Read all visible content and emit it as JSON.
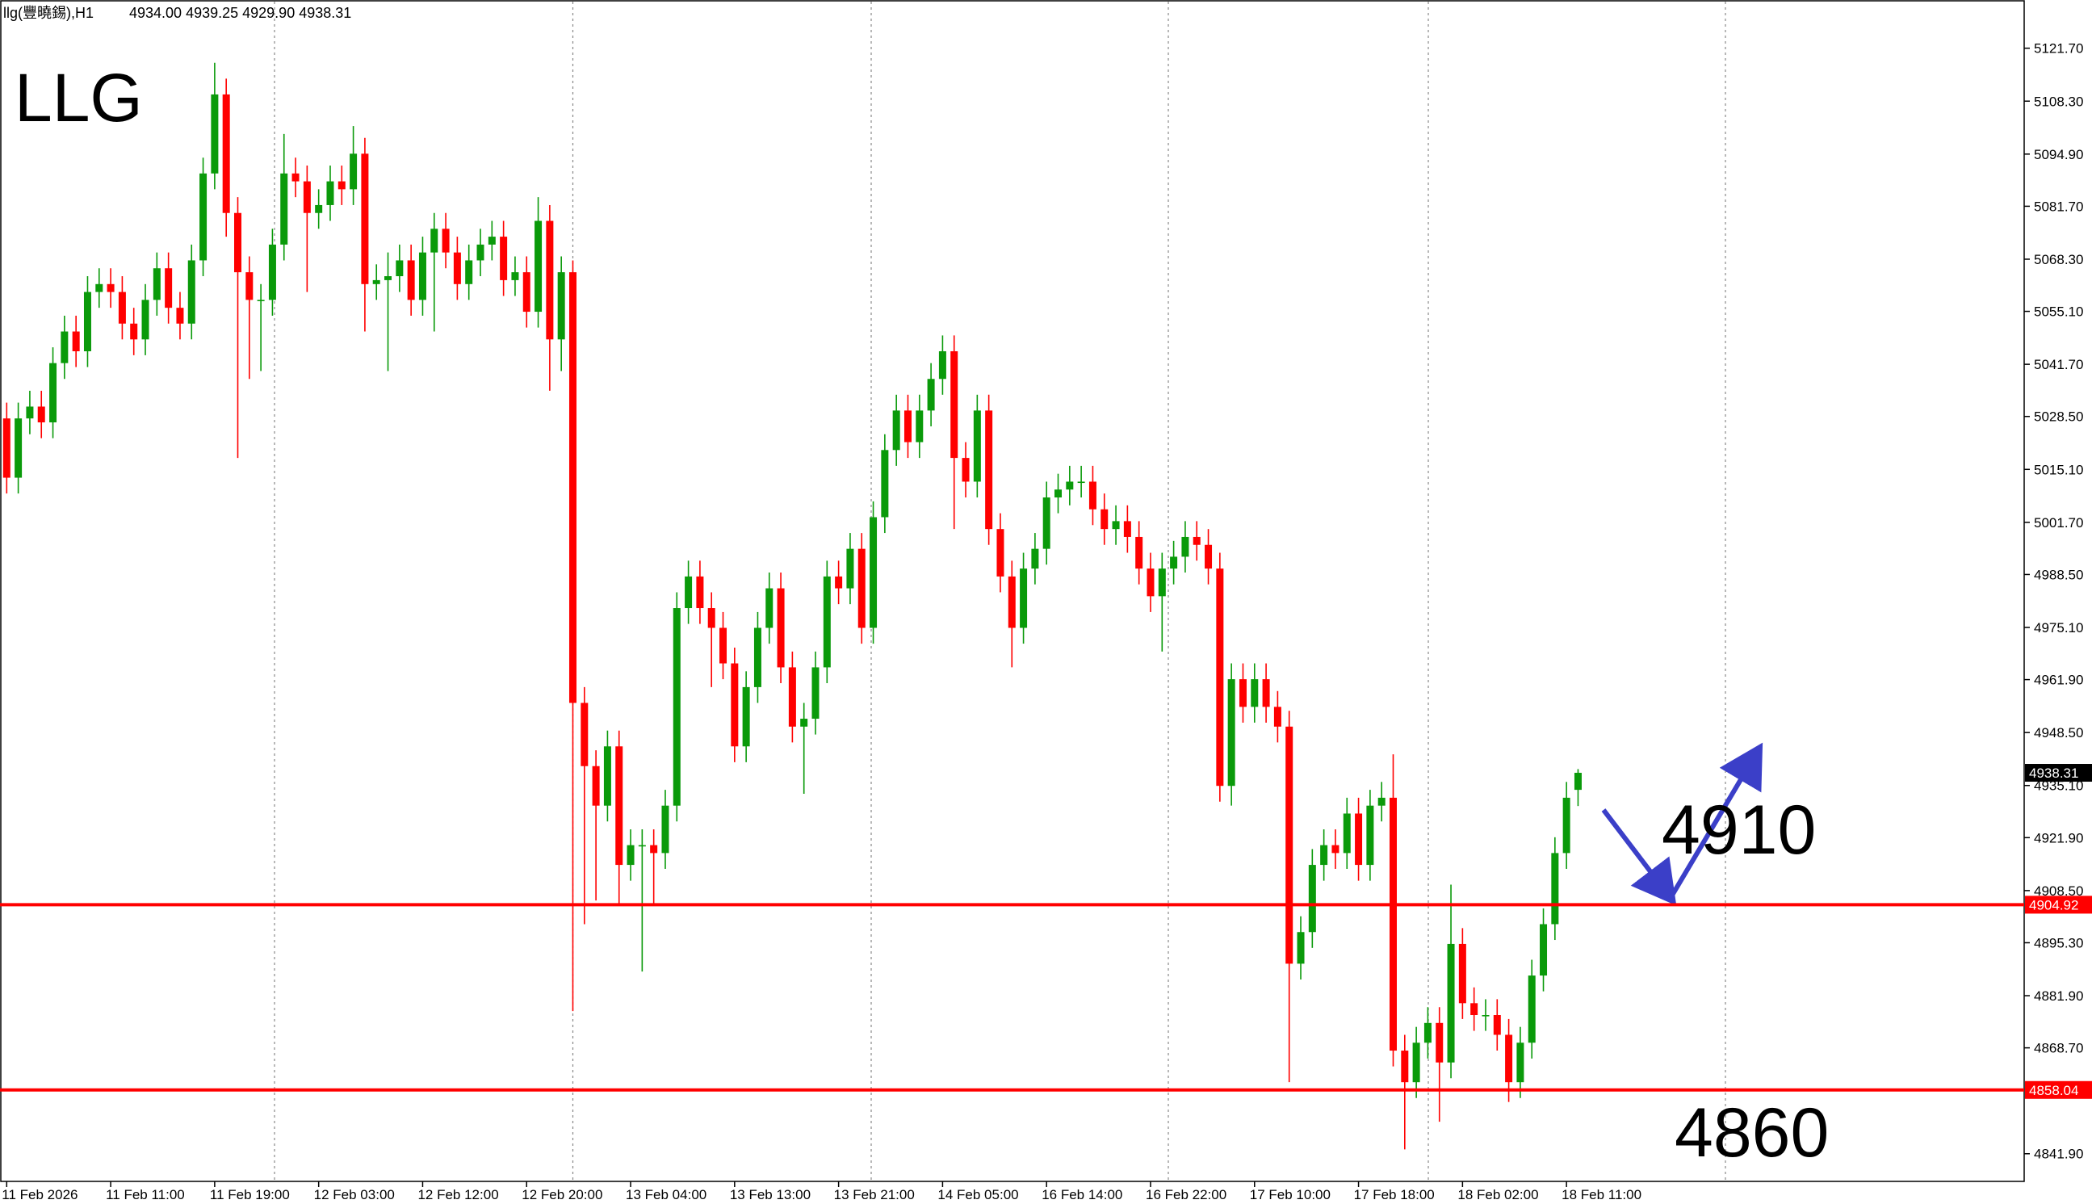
{
  "chart_data": {
    "type": "candlestick",
    "title": "llg(豐曉錫),H1",
    "ohlc_label": "4934.00 4939.25 4929.90 4938.31",
    "annotations": [
      "LLG",
      "4910",
      "4860"
    ],
    "up_color": "#0a9a0a",
    "down_color": "#ff0000",
    "level_color": "#ff0000",
    "categories": [
      "11 Feb 2026",
      null,
      null,
      null,
      null,
      null,
      null,
      null,
      null,
      "11 Feb 11:00",
      null,
      null,
      null,
      null,
      null,
      null,
      null,
      null,
      "11 Feb 19:00",
      null,
      null,
      null,
      null,
      null,
      null,
      null,
      null,
      "12 Feb 03:00",
      null,
      null,
      null,
      null,
      null,
      null,
      null,
      null,
      "12 Feb 12:00",
      null,
      null,
      null,
      null,
      null,
      null,
      null,
      null,
      "12 Feb 20:00",
      null,
      null,
      null,
      null,
      null,
      null,
      null,
      null,
      "13 Feb 04:00",
      null,
      null,
      null,
      null,
      null,
      null,
      null,
      null,
      "13 Feb 13:00",
      null,
      null,
      null,
      null,
      null,
      null,
      null,
      null,
      "13 Feb 21:00",
      null,
      null,
      null,
      null,
      null,
      null,
      null,
      null,
      "14 Feb 05:00",
      null,
      null,
      null,
      null,
      null,
      null,
      null,
      null,
      "16 Feb 14:00",
      null,
      null,
      null,
      null,
      null,
      null,
      null,
      null,
      "16 Feb 22:00",
      null,
      null,
      null,
      null,
      null,
      null,
      null,
      null,
      "17 Feb 10:00",
      null,
      null,
      null,
      null,
      null,
      null,
      null,
      null,
      "17 Feb 18:00",
      null,
      null,
      null,
      null,
      null,
      null,
      null,
      null,
      "18 Feb 02:00",
      null,
      null,
      null,
      null,
      null,
      null,
      null,
      null,
      "18 Feb 11:00",
      null
    ],
    "open": [
      5028,
      5013,
      5028,
      5031,
      5027,
      5042,
      5050,
      5045,
      5060,
      5062,
      5060,
      5052,
      5048,
      5058,
      5066,
      5056,
      5052,
      5068,
      5090,
      5110,
      5080,
      5065,
      5058,
      5058,
      5072,
      5090,
      5088,
      5080,
      5082,
      5088,
      5086,
      5095,
      5062,
      5063,
      5064,
      5068,
      5058,
      5070,
      5076,
      5070,
      5062,
      5068,
      5072,
      5074,
      5063,
      5065,
      5055,
      5078,
      5048,
      5065,
      4956,
      4940,
      4930,
      4945,
      4915,
      4920,
      4920,
      4918,
      4930,
      4980,
      4988,
      4980,
      4975,
      4966,
      4945,
      4960,
      4975,
      4985,
      4965,
      4950,
      4952,
      4965,
      4988,
      4985,
      4995,
      4975,
      5003,
      5020,
      5030,
      5022,
      5030,
      5038,
      5045,
      5018,
      5012,
      5030,
      5000,
      4988,
      4975,
      4990,
      4995,
      5008,
      5010,
      5012,
      5012,
      5005,
      5000,
      5002,
      4998,
      4990,
      4983,
      4990,
      4993,
      4998,
      4996,
      4990,
      4935,
      4962,
      4955,
      4962,
      4955,
      4950,
      4890,
      4898,
      4915,
      4920,
      4918,
      4928,
      4915,
      4930,
      4932,
      4868,
      4860,
      4870,
      4875,
      4865,
      4895,
      4880,
      4877,
      4877,
      4872,
      4860,
      4870,
      4887,
      4900,
      4918,
      4934
    ],
    "high": [
      5032,
      5032,
      5035,
      5035,
      5046,
      5054,
      5054,
      5064,
      5066,
      5066,
      5064,
      5056,
      5062,
      5070,
      5070,
      5060,
      5072,
      5094,
      5118,
      5114,
      5084,
      5069,
      5062,
      5076,
      5100,
      5094,
      5092,
      5086,
      5092,
      5092,
      5102,
      5099,
      5067,
      5070,
      5072,
      5072,
      5074,
      5080,
      5080,
      5074,
      5072,
      5076,
      5078,
      5078,
      5069,
      5069,
      5084,
      5082,
      5069,
      5068,
      4960,
      4944,
      4949,
      4949,
      4924,
      4924,
      4924,
      4934,
      4984,
      4992,
      4992,
      4984,
      4979,
      4970,
      4964,
      4979,
      4989,
      4989,
      4969,
      4956,
      4969,
      4992,
      4992,
      4999,
      4999,
      5007,
      5024,
      5034,
      5034,
      5034,
      5042,
      5049,
      5049,
      5022,
      5034,
      5034,
      5004,
      4992,
      4994,
      4999,
      5012,
      5014,
      5016,
      5016,
      5016,
      5009,
      5006,
      5006,
      5002,
      4994,
      4994,
      4997,
      5002,
      5002,
      5000,
      4994,
      4966,
      4966,
      4966,
      4966,
      4959,
      4954,
      4902,
      4919,
      4924,
      4924,
      4932,
      4932,
      4934,
      4936,
      4943,
      4872,
      4874,
      4879,
      4879,
      4910,
      4899,
      4884,
      4881,
      4881,
      4876,
      4874,
      4891,
      4904,
      4922,
      4936,
      4939.25
    ],
    "low": [
      5009,
      5009,
      5024,
      5023,
      5023,
      5038,
      5041,
      5041,
      5056,
      5056,
      5048,
      5044,
      5044,
      5054,
      5052,
      5048,
      5048,
      5064,
      5086,
      5074,
      5018,
      5038,
      5040,
      5054,
      5068,
      5084,
      5060,
      5076,
      5078,
      5082,
      5082,
      5050,
      5058,
      5040,
      5060,
      5054,
      5054,
      5050,
      5066,
      5058,
      5058,
      5064,
      5068,
      5059,
      5059,
      5051,
      5051,
      5035,
      5040,
      4878,
      4900,
      4906,
      4926,
      4905,
      4911,
      4888,
      4905,
      4914,
      4926,
      4976,
      4976,
      4960,
      4962,
      4941,
      4941,
      4956,
      4971,
      4961,
      4946,
      4933,
      4948,
      4961,
      4981,
      4981,
      4971,
      4971,
      4999,
      5016,
      5018,
      5018,
      5026,
      5034,
      5000,
      5008,
      5008,
      4996,
      4984,
      4965,
      4971,
      4986,
      4991,
      5004,
      5006,
      5008,
      5001,
      4996,
      4996,
      4994,
      4986,
      4979,
      4969,
      4986,
      4989,
      4992,
      4986,
      4931,
      4930,
      4951,
      4951,
      4951,
      4946,
      4860,
      4886,
      4894,
      4911,
      4914,
      4914,
      4911,
      4911,
      4926,
      4864,
      4843,
      4856,
      4866,
      4850,
      4861,
      4876,
      4873,
      4873,
      4868,
      4855,
      4856,
      4866,
      4883,
      4896,
      4914,
      4929.9
    ],
    "close": [
      5013,
      5028,
      5031,
      5027,
      5042,
      5050,
      5045,
      5060,
      5062,
      5060,
      5052,
      5048,
      5058,
      5066,
      5056,
      5052,
      5068,
      5090,
      5110,
      5080,
      5065,
      5058,
      5058,
      5072,
      5090,
      5088,
      5080,
      5082,
      5088,
      5086,
      5095,
      5062,
      5063,
      5064,
      5068,
      5058,
      5070,
      5076,
      5070,
      5062,
      5068,
      5072,
      5074,
      5063,
      5065,
      5055,
      5078,
      5048,
      5065,
      4956,
      4940,
      4930,
      4945,
      4915,
      4920,
      4920,
      4918,
      4930,
      4980,
      4988,
      4980,
      4975,
      4966,
      4945,
      4960,
      4975,
      4985,
      4965,
      4950,
      4952,
      4965,
      4988,
      4985,
      4995,
      4975,
      5003,
      5020,
      5030,
      5022,
      5030,
      5038,
      5045,
      5018,
      5012,
      5030,
      5000,
      4988,
      4975,
      4990,
      4995,
      5008,
      5010,
      5012,
      5012,
      5005,
      5000,
      5002,
      4998,
      4990,
      4983,
      4990,
      4993,
      4998,
      4996,
      4990,
      4935,
      4962,
      4955,
      4962,
      4955,
      4950,
      4890,
      4898,
      4915,
      4920,
      4918,
      4928,
      4915,
      4930,
      4932,
      4868,
      4860,
      4870,
      4875,
      4865,
      4895,
      4880,
      4877,
      4877,
      4872,
      4860,
      4870,
      4887,
      4900,
      4918,
      4932,
      4938.31
    ],
    "levels": [
      4904.92,
      4858.04
    ],
    "ylim": [
      4834.9,
      5133.9
    ],
    "yticks": [
      {
        "value": 5121.7,
        "label": "5121.70"
      },
      {
        "value": 5108.3,
        "label": "5108.30"
      },
      {
        "value": 5094.9,
        "label": "5094.90"
      },
      {
        "value": 5081.7,
        "label": "5081.70"
      },
      {
        "value": 5068.3,
        "label": "5068.30"
      },
      {
        "value": 5055.1,
        "label": "5055.10"
      },
      {
        "value": 5041.7,
        "label": "5041.70"
      },
      {
        "value": 5028.5,
        "label": "5028.50"
      },
      {
        "value": 5015.1,
        "label": "5015.10"
      },
      {
        "value": 5001.7,
        "label": "5001.70"
      },
      {
        "value": 4988.5,
        "label": "4988.50"
      },
      {
        "value": 4975.1,
        "label": "4975.10"
      },
      {
        "value": 4961.9,
        "label": "4961.90"
      },
      {
        "value": 4948.5,
        "label": "4948.50"
      },
      {
        "value": 4935.1,
        "label": "4935.10"
      },
      {
        "value": 4921.9,
        "label": "4921.90"
      },
      {
        "value": 4908.5,
        "label": "4908.50"
      },
      {
        "value": 4895.3,
        "label": "4895.30"
      },
      {
        "value": 4881.9,
        "label": "4881.90"
      },
      {
        "value": 4868.7,
        "label": "4868.70"
      },
      {
        "value": 4841.9,
        "label": "4841.90"
      }
    ]
  }
}
